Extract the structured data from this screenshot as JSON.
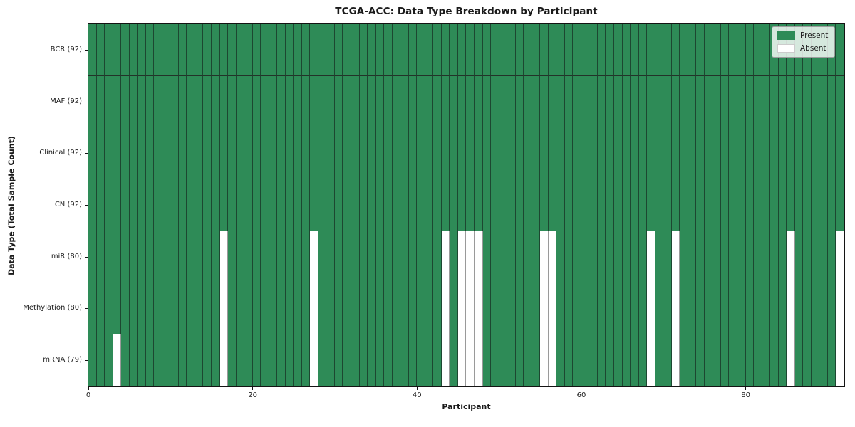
{
  "chart_data": {
    "type": "heatmap",
    "title": "TCGA-ACC: Data Type Breakdown by Participant",
    "xlabel": "Participant",
    "ylabel": "Data Type (Total Sample Count)",
    "n_participants": 92,
    "xlim": [
      0,
      92
    ],
    "x_ticks": [
      {
        "value": 0,
        "label": "0"
      },
      {
        "value": 20,
        "label": "20"
      },
      {
        "value": 40,
        "label": "40"
      },
      {
        "value": 60,
        "label": "60"
      },
      {
        "value": 80,
        "label": "80"
      }
    ],
    "grid": false,
    "present_color": "#2e8b57",
    "absent_color": "#ffffff",
    "legend": {
      "position": "upper right",
      "entries": [
        {
          "state": "present",
          "label": "Present",
          "color": "#2e8b57"
        },
        {
          "state": "absent",
          "label": "Absent",
          "color": "#ffffff"
        }
      ]
    },
    "rows": [
      {
        "data_type": "BCR",
        "label": "BCR (92)",
        "total_samples": 92,
        "absent_participants": []
      },
      {
        "data_type": "MAF",
        "label": "MAF (92)",
        "total_samples": 92,
        "absent_participants": []
      },
      {
        "data_type": "Clinical",
        "label": "Clinical (92)",
        "total_samples": 92,
        "absent_participants": []
      },
      {
        "data_type": "CN",
        "label": "CN (92)",
        "total_samples": 92,
        "absent_participants": []
      },
      {
        "data_type": "miR",
        "label": "miR (80)",
        "total_samples": 80,
        "absent_participants": [
          16,
          27,
          43,
          45,
          46,
          47,
          55,
          56,
          68,
          71,
          85,
          91
        ]
      },
      {
        "data_type": "Methylation",
        "label": "Methylation (80)",
        "total_samples": 80,
        "absent_participants": [
          16,
          27,
          43,
          45,
          46,
          47,
          55,
          56,
          68,
          71,
          85,
          91
        ]
      },
      {
        "data_type": "mRNA",
        "label": "mRNA (79)",
        "total_samples": 79,
        "absent_participants": [
          3,
          16,
          27,
          43,
          45,
          46,
          47,
          55,
          56,
          68,
          71,
          85,
          91
        ]
      }
    ]
  }
}
